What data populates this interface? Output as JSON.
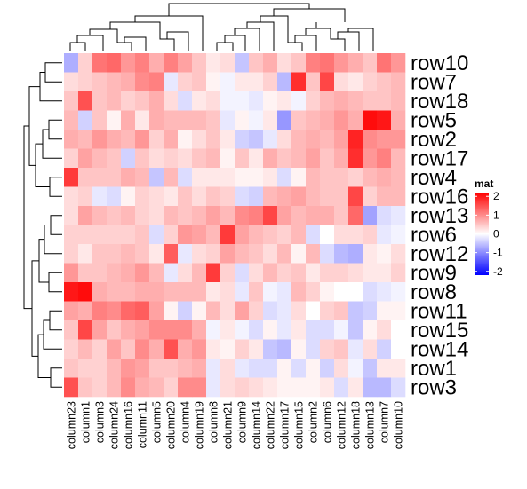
{
  "chart_data": {
    "type": "heatmap",
    "rows": [
      "row10",
      "row7",
      "row18",
      "row5",
      "row2",
      "row17",
      "row4",
      "row16",
      "row13",
      "row6",
      "row12",
      "row9",
      "row8",
      "row11",
      "row15",
      "row14",
      "row1",
      "row3"
    ],
    "columns": [
      "column23",
      "column1",
      "column3",
      "column24",
      "column16",
      "column11",
      "column5",
      "column20",
      "column4",
      "column19",
      "column8",
      "column21",
      "column9",
      "column14",
      "column22",
      "column17",
      "column15",
      "column2",
      "column6",
      "column12",
      "column18",
      "column13",
      "column7",
      "column10"
    ],
    "values": [
      [
        -0.7,
        0.4,
        1.2,
        1.3,
        0.9,
        1.1,
        0.7,
        1.1,
        0.8,
        0.5,
        0.2,
        0.3,
        -0.5,
        0.5,
        0.7,
        0.3,
        0.5,
        1.1,
        1.2,
        0.9,
        0.7,
        0.5,
        1.2,
        0.9
      ],
      [
        0.3,
        0.4,
        0.5,
        0.6,
        0.7,
        1.0,
        1.1,
        -0.2,
        0.4,
        0.5,
        0.1,
        -0.1,
        0.2,
        0.2,
        0.4,
        -0.6,
        1.8,
        0.5,
        1.6,
        0.3,
        0.2,
        0.4,
        0.5,
        0.6
      ],
      [
        0.5,
        1.5,
        0.5,
        0.6,
        0.4,
        0.5,
        0.7,
        0.3,
        -0.3,
        0.2,
        0.3,
        -0.1,
        -0.1,
        -0.2,
        0.1,
        0.2,
        -0.1,
        0.4,
        0.6,
        0.7,
        0.6,
        0.5,
        0.5,
        0.6
      ],
      [
        0.6,
        -0.4,
        0.5,
        0.1,
        0.7,
        0.2,
        0.7,
        0.6,
        0.6,
        0.6,
        0.5,
        -0.2,
        0.1,
        -0.1,
        0.2,
        -0.9,
        0.5,
        0.6,
        0.7,
        0.9,
        0.7,
        2.1,
        2.0,
        0.7
      ],
      [
        0.7,
        0.6,
        0.9,
        0.7,
        0.6,
        0.9,
        0.4,
        0.7,
        0.1,
        0.3,
        0.5,
        0.2,
        -0.4,
        -0.5,
        -0.2,
        0.3,
        0.6,
        0.7,
        0.6,
        0.8,
        1.9,
        1.0,
        0.9,
        0.9
      ],
      [
        0.4,
        0.8,
        0.6,
        0.5,
        -0.4,
        0.5,
        0.3,
        0.4,
        0.3,
        0.5,
        0.6,
        0.1,
        0.5,
        0.2,
        0.7,
        0.5,
        0.6,
        0.8,
        0.5,
        0.7,
        1.8,
        0.9,
        1.1,
        0.6
      ],
      [
        1.7,
        0.5,
        0.5,
        0.5,
        0.7,
        0.6,
        -0.5,
        0.6,
        -0.3,
        0.2,
        0.2,
        0.2,
        0.1,
        0.1,
        0.2,
        -0.3,
        0.1,
        0.6,
        0.5,
        0.5,
        0.4,
        0.6,
        0.7,
        0.6
      ],
      [
        0.3,
        0.4,
        -0.2,
        -0.3,
        0.1,
        0.4,
        0.3,
        0.2,
        0.5,
        0.3,
        0.5,
        0.4,
        -0.3,
        -0.4,
        0.6,
        0.7,
        0.8,
        0.6,
        0.5,
        0.5,
        1.6,
        0.4,
        0.6,
        0.6
      ],
      [
        0.3,
        0.8,
        0.6,
        0.5,
        0.6,
        0.4,
        0.3,
        0.6,
        0.5,
        0.6,
        0.8,
        0.6,
        1.0,
        1.1,
        1.6,
        0.8,
        0.6,
        0.7,
        0.7,
        0.5,
        1.3,
        -0.8,
        -0.3,
        -0.2
      ],
      [
        0.4,
        0.4,
        0.4,
        0.4,
        0.4,
        0.5,
        -0.3,
        0.4,
        0.9,
        0.8,
        0.6,
        1.7,
        0.8,
        0.6,
        0.5,
        0.4,
        0.6,
        -0.3,
        0.0,
        0.3,
        0.3,
        0.4,
        -0.2,
        -0.1
      ],
      [
        0.4,
        0.2,
        0.5,
        0.5,
        0.6,
        0.5,
        0.2,
        1.4,
        -0.2,
        0.3,
        0.4,
        0.8,
        0.6,
        0.5,
        0.3,
        0.6,
        0.1,
        0.6,
        -0.3,
        -0.6,
        -0.7,
        0.2,
        0.1,
        0.3
      ],
      [
        0.9,
        0.5,
        0.5,
        0.6,
        0.7,
        0.9,
        0.6,
        -0.2,
        0.3,
        0.6,
        1.7,
        0.4,
        -0.3,
        0.3,
        0.6,
        0.4,
        0.5,
        0.2,
        0.4,
        0.4,
        0.3,
        0.2,
        0.2,
        0.4
      ],
      [
        2.0,
        2.1,
        0.7,
        0.6,
        0.6,
        0.7,
        0.7,
        0.6,
        0.6,
        0.6,
        0.2,
        0.3,
        -0.2,
        0.5,
        -0.1,
        -0.2,
        0.6,
        0.4,
        0.1,
        0.0,
        0.0,
        -0.3,
        -0.2,
        -0.1
      ],
      [
        0.8,
        0.7,
        1.1,
        1.0,
        1.3,
        1.4,
        0.8,
        0.1,
        -0.4,
        0.1,
        0.6,
        0.3,
        0.8,
        0.4,
        -0.3,
        -0.2,
        0.3,
        0.0,
        0.4,
        0.5,
        -0.5,
        -0.4,
        0.1,
        0.1
      ],
      [
        0.5,
        1.6,
        0.8,
        0.5,
        0.7,
        0.8,
        1.0,
        1.0,
        1.0,
        0.7,
        -0.1,
        0.2,
        -0.1,
        -0.3,
        0.1,
        -0.2,
        0.2,
        -0.3,
        -0.3,
        -0.1,
        -0.5,
        0.1,
        0.3,
        0.0
      ],
      [
        0.4,
        0.6,
        0.4,
        0.8,
        0.5,
        1.0,
        0.7,
        1.5,
        0.7,
        0.9,
        0.2,
        0.1,
        0.4,
        0.2,
        -0.5,
        -0.6,
        0.1,
        -0.3,
        0.4,
        0.5,
        -0.2,
        0.3,
        -0.4,
        0.0
      ],
      [
        0.5,
        0.4,
        0.4,
        0.6,
        0.9,
        0.8,
        0.5,
        0.5,
        0.6,
        0.7,
        -0.2,
        0.3,
        -0.2,
        -0.3,
        -0.3,
        0.1,
        -0.3,
        0.1,
        -0.4,
        0.3,
        -0.1,
        -0.5,
        0.2,
        0.2
      ],
      [
        1.5,
        0.5,
        0.4,
        0.6,
        1.0,
        0.7,
        0.6,
        0.4,
        1.0,
        1.0,
        -0.2,
        0.3,
        0.4,
        0.3,
        0.2,
        0.1,
        0.1,
        0.1,
        0.2,
        -0.3,
        0.2,
        -0.6,
        -0.6,
        -0.3
      ]
    ],
    "legend": {
      "title": "mat",
      "ticks": [
        "2",
        "1",
        "0",
        "-1",
        "-2"
      ],
      "tick_values": [
        2,
        1,
        0,
        -1,
        -2
      ],
      "range": [
        -2.2,
        2.2
      ]
    },
    "colors": {
      "low": "#0000FF",
      "mid": "#FFFFFF",
      "high": "#FF0000"
    }
  }
}
